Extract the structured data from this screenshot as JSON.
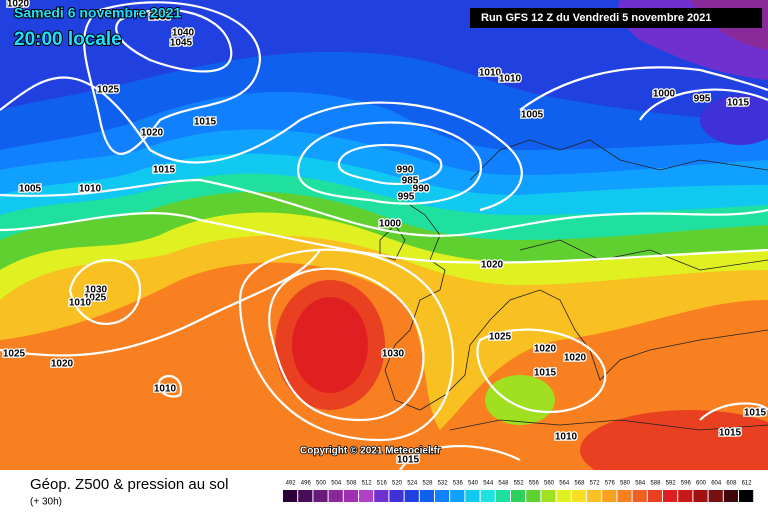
{
  "header": {
    "date": "Samedi 6 novembre 2021",
    "time": "20:00 locale",
    "run": "Run GFS 12 Z du Vendredi 5 novembre 2021"
  },
  "copyright": "Copyright © 2021 Meteociel.fr",
  "legend": {
    "title": "Géop. Z500 & pression au sol",
    "lead_time": "(+ 30h)",
    "ticks": [
      492,
      496,
      500,
      504,
      508,
      512,
      516,
      520,
      524,
      528,
      532,
      536,
      540,
      544,
      548,
      552,
      556,
      560,
      564,
      568,
      572,
      576,
      580,
      584,
      588,
      592,
      596,
      600,
      604,
      608,
      612
    ],
    "colors": [
      "#2b0038",
      "#4a0a5a",
      "#6a1a7a",
      "#8a2a9a",
      "#a030b0",
      "#b040c8",
      "#7030d0",
      "#4030d8",
      "#2040e0",
      "#1060f0",
      "#1080ff",
      "#10a0ff",
      "#10c8f0",
      "#20e0e0",
      "#20e0a0",
      "#30d060",
      "#60d030",
      "#a0e020",
      "#e0f020",
      "#f8e020",
      "#f8c020",
      "#f8a020",
      "#f88020",
      "#f06020",
      "#e84020",
      "#e02020",
      "#c81818",
      "#a01010",
      "#781010",
      "#400808",
      "#000000"
    ]
  },
  "isobar_labels": [
    1020,
    1030,
    1040,
    1045,
    1025,
    1020,
    1015,
    1015,
    1010,
    1005,
    1010,
    1010,
    1005,
    1000,
    995,
    990,
    985,
    990,
    995,
    1000,
    1015,
    1020,
    1030,
    1025,
    1010,
    1025,
    1020,
    1010,
    1030,
    1025,
    1020,
    1020,
    1015,
    1010,
    1015,
    1015,
    1015
  ]
}
